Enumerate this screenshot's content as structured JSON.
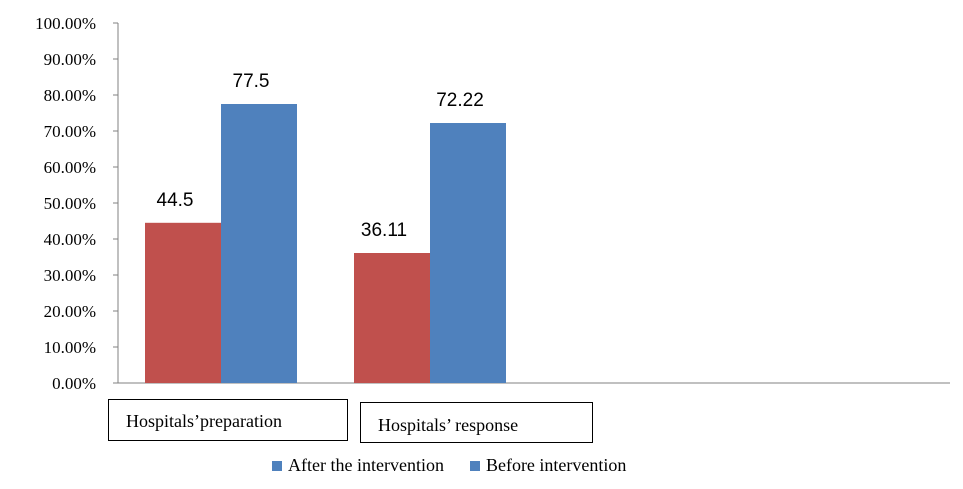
{
  "chart_data": {
    "type": "bar",
    "categories": [
      "Hospitals’preparation",
      "Hospitals’ response"
    ],
    "series": [
      {
        "name": "After the intervention",
        "values": [
          44.5,
          36.11
        ],
        "color": "#c0504d"
      },
      {
        "name": "Before intervention",
        "values": [
          77.5,
          72.22
        ],
        "color": "#4f81bd"
      }
    ],
    "data_labels": [
      [
        "44.5",
        "36.11"
      ],
      [
        "77.5",
        "72.22"
      ]
    ],
    "y_ticks": [
      "0.00%",
      "10.00%",
      "20.00%",
      "30.00%",
      "40.00%",
      "50.00%",
      "60.00%",
      "70.00%",
      "80.00%",
      "90.00%",
      "100.00%"
    ],
    "ylim": [
      0,
      100
    ],
    "grid": false,
    "legend_position": "bottom",
    "legend_swatch_color": "#4f81bd",
    "title": "",
    "xlabel": "",
    "ylabel": ""
  }
}
